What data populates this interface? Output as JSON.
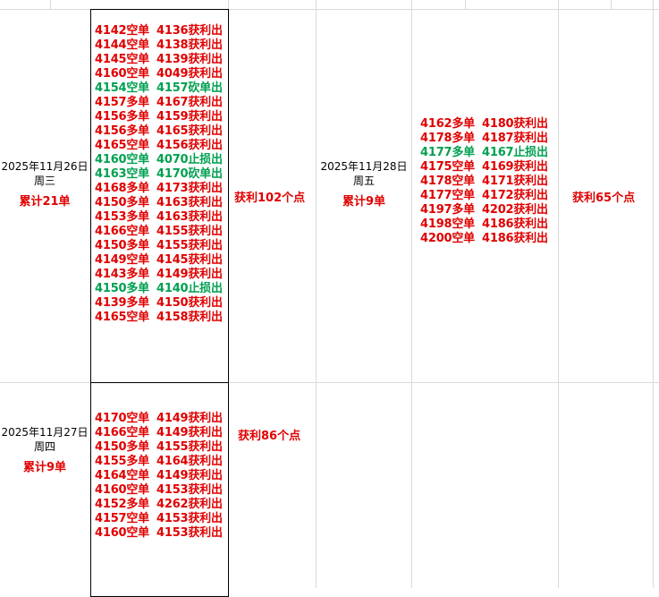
{
  "colors": {
    "win": "#e00000",
    "neutral": "#00a050",
    "grid": "#d9d9d9",
    "border": "#000000"
  },
  "days": [
    {
      "date": "2025年11月26日",
      "weekday": "周三",
      "cumulative": "累计21单",
      "profit": "获利102个点",
      "trades": [
        {
          "open": "4142空单",
          "close": "4136获利出",
          "color": "red"
        },
        {
          "open": "4144空单",
          "close": "4138获利出",
          "color": "red"
        },
        {
          "open": "4145空单",
          "close": "4139获利出",
          "color": "red"
        },
        {
          "open": "4160空单",
          "close": "4049获利出",
          "color": "red"
        },
        {
          "open": "4154空单",
          "close": "4157砍单出",
          "color": "green"
        },
        {
          "open": "4157多单",
          "close": "4167获利出",
          "color": "red"
        },
        {
          "open": "4156多单",
          "close": "4159获利出",
          "color": "red"
        },
        {
          "open": "4156多单",
          "close": "4165获利出",
          "color": "red"
        },
        {
          "open": "4165空单",
          "close": "4156获利出",
          "color": "red"
        },
        {
          "open": "4160空单",
          "close": "4070止损出",
          "color": "green"
        },
        {
          "open": "4163空单",
          "close": "4170砍单出",
          "color": "green"
        },
        {
          "open": "4168多单",
          "close": "4173获利出",
          "color": "red"
        },
        {
          "open": "4150多单",
          "close": "4163获利出",
          "color": "red"
        },
        {
          "open": "4153多单",
          "close": "4163获利出",
          "color": "red"
        },
        {
          "open": "4166空单",
          "close": "4155获利出",
          "color": "red"
        },
        {
          "open": "4150多单",
          "close": "4155获利出",
          "color": "red"
        },
        {
          "open": "4149空单",
          "close": "4145获利出",
          "color": "red"
        },
        {
          "open": "4143多单",
          "close": "4149获利出",
          "color": "red"
        },
        {
          "open": "4150多单",
          "close": "4140止损出",
          "color": "green"
        },
        {
          "open": "4139多单",
          "close": "4150获利出",
          "color": "red"
        },
        {
          "open": "4165空单",
          "close": "4158获利出",
          "color": "red"
        }
      ]
    },
    {
      "date": "2025年11月27日",
      "weekday": "周四",
      "cumulative": "累计9单",
      "profit": "获利86个点",
      "trades": [
        {
          "open": "4170空单",
          "close": "4149获利出",
          "color": "red"
        },
        {
          "open": "4166空单",
          "close": "4149获利出",
          "color": "red"
        },
        {
          "open": "4150多单",
          "close": "4155获利出",
          "color": "red"
        },
        {
          "open": "4155多单",
          "close": "4164获利出",
          "color": "red"
        },
        {
          "open": "4164空单",
          "close": "4149获利出",
          "color": "red"
        },
        {
          "open": "4160空单",
          "close": "4153获利出",
          "color": "red"
        },
        {
          "open": "4152多单",
          "close": "4262获利出",
          "color": "red"
        },
        {
          "open": "4157空单",
          "close": "4153获利出",
          "color": "red"
        },
        {
          "open": "4160空单",
          "close": "4153获利出",
          "color": "red"
        }
      ]
    },
    {
      "date": "2025年11月28日",
      "weekday": "周五",
      "cumulative": "累计9单",
      "profit": "获利65个点",
      "trades": [
        {
          "open": "4162多单",
          "close": "4180获利出",
          "color": "red"
        },
        {
          "open": "4178多单",
          "close": "4187获利出",
          "color": "red"
        },
        {
          "open": "4177多单",
          "close": "4167止损出",
          "color": "green"
        },
        {
          "open": "4175空单",
          "close": "4169获利出",
          "color": "red"
        },
        {
          "open": "4178空单",
          "close": "4171获利出",
          "color": "red"
        },
        {
          "open": "4177空单",
          "close": "4172获利出",
          "color": "red"
        },
        {
          "open": "4197多单",
          "close": "4202获利出",
          "color": "red"
        },
        {
          "open": "4198空单",
          "close": "4186获利出",
          "color": "red"
        },
        {
          "open": "4200空单",
          "close": "4186获利出",
          "color": "red"
        }
      ]
    }
  ]
}
